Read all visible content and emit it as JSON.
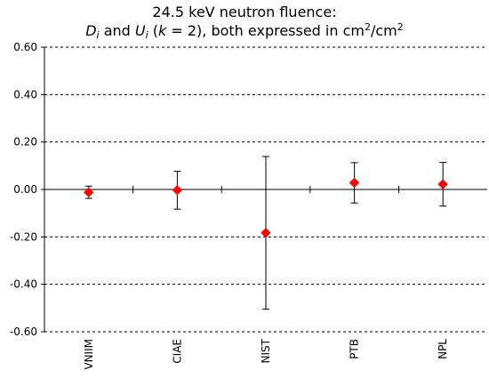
{
  "chart_data": {
    "type": "scatter",
    "title": {
      "line1": "24.5 keV neutron fluence:",
      "line2": {
        "d_letter": "D",
        "u_letter": "U",
        "subscript": "i",
        "and_text": "and",
        "k_letter": "k",
        "k_value": "= 2), both expressed in cm",
        "unit_mid": "/cm",
        "exp": "2"
      }
    },
    "xlabel": "",
    "ylabel": "",
    "categories": [
      "VNIIM",
      "CIAE",
      "NIST",
      "PTB",
      "NPL"
    ],
    "ylim": [
      -0.6,
      0.6
    ],
    "yticks": [
      "0.60",
      "0.40",
      "0.20",
      "0.00",
      "-0.20",
      "-0.40",
      "-0.60"
    ],
    "ytick_values": [
      0.6,
      0.4,
      0.2,
      0.0,
      -0.2,
      -0.4,
      -0.6
    ],
    "grid": "horizontal dashed",
    "series": [
      {
        "values": [
          -0.012,
          -0.003,
          -0.183,
          0.028,
          0.022
        ],
        "uncertainty": [
          0.026,
          0.08,
          0.322,
          0.085,
          0.092
        ],
        "marker": "diamond",
        "color": "#ff0000"
      }
    ]
  }
}
